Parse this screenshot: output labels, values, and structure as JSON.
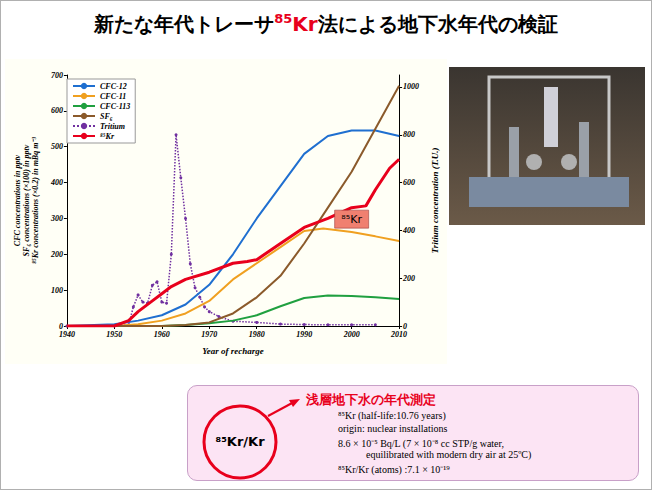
{
  "title": [
    {
      "text": "新たな年代トレーサ"
    },
    {
      "text": "85",
      "color": "#e8001c",
      "superscript": true
    },
    {
      "text": "Kr",
      "color": "#e8001c"
    },
    {
      "text": "法による地下水年代の検証"
    }
  ],
  "chart_data": {
    "type": "line",
    "x_label": "Year of recharge",
    "y_label": [
      "CFC concentrations in pptv",
      "SF₆ concentrations (×100) in pptv",
      "⁸⁵Kr concentrations (×0.2) in mBq m⁻³"
    ],
    "y2_label": "Tritium concentration (T.U.)",
    "xlim": [
      1940,
      2010
    ],
    "xticks": [
      1940,
      1950,
      1960,
      1970,
      1980,
      1990,
      2000,
      2010
    ],
    "ylim": [
      0,
      700
    ],
    "yticks": [
      0,
      100,
      200,
      300,
      400,
      500,
      600,
      700
    ],
    "y2lim": [
      0,
      1050
    ],
    "y2ticks": [
      0,
      200,
      400,
      600,
      800,
      1000
    ],
    "grid": false,
    "legend": "upper left",
    "series": [
      {
        "name": "CFC-12",
        "color": "#1f6fd0",
        "line_style": "solid",
        "marker": "none",
        "x": [
          1940,
          1950,
          1955,
          1960,
          1965,
          1970,
          1975,
          1980,
          1985,
          1990,
          1995,
          2000,
          2005,
          2010
        ],
        "values": [
          0,
          5,
          15,
          30,
          60,
          115,
          200,
          300,
          390,
          480,
          530,
          545,
          545,
          530
        ]
      },
      {
        "name": "CFC-11",
        "color": "#f0a020",
        "line_style": "solid",
        "marker": "none",
        "x": [
          1940,
          1950,
          1955,
          1960,
          1965,
          1970,
          1975,
          1980,
          1985,
          1990,
          1994,
          2000,
          2005,
          2010
        ],
        "values": [
          0,
          0,
          5,
          15,
          35,
          70,
          130,
          175,
          220,
          265,
          272,
          262,
          250,
          237
        ]
      },
      {
        "name": "CFC-113",
        "color": "#20a040",
        "line_style": "solid",
        "marker": "none",
        "x": [
          1940,
          1960,
          1965,
          1970,
          1975,
          1980,
          1985,
          1990,
          1995,
          2000,
          2005,
          2010
        ],
        "values": [
          0,
          0,
          3,
          8,
          15,
          30,
          55,
          78,
          85,
          84,
          80,
          75
        ]
      },
      {
        "name": "SF₆",
        "color": "#8b5a2b",
        "line_style": "solid",
        "marker": "none",
        "x": [
          1940,
          1960,
          1965,
          1970,
          1975,
          1980,
          1985,
          1990,
          1995,
          2000,
          2005,
          2010
        ],
        "values": [
          0,
          0,
          3,
          10,
          35,
          80,
          140,
          230,
          330,
          430,
          550,
          670
        ]
      },
      {
        "name": "Tritium",
        "color": "#7030a0",
        "line_style": "dotted",
        "marker": "circle",
        "axis": "y2",
        "x": [
          1940,
          1950,
          1953,
          1954,
          1955,
          1956,
          1957,
          1958,
          1959,
          1960,
          1961,
          1962,
          1963,
          1964,
          1965,
          1966,
          1967,
          1968,
          1969,
          1970,
          1972,
          1975,
          1980,
          1985,
          1990,
          1995,
          2000,
          2005
        ],
        "values": [
          0,
          0,
          5,
          80,
          130,
          100,
          95,
          170,
          185,
          100,
          95,
          300,
          800,
          620,
          450,
          260,
          160,
          120,
          80,
          60,
          40,
          20,
          15,
          8,
          6,
          5,
          5,
          5
        ]
      },
      {
        "name": "⁸⁵Kr",
        "color": "#e8001c",
        "line_style": "solid",
        "marker": "none",
        "x": [
          1940,
          1950,
          1953,
          1955,
          1958,
          1960,
          1962,
          1965,
          1970,
          1975,
          1978,
          1980,
          1985,
          1990,
          1995,
          2000,
          2003,
          2005,
          2008,
          2010
        ],
        "values": [
          0,
          0,
          15,
          40,
          70,
          90,
          110,
          130,
          150,
          175,
          180,
          185,
          230,
          275,
          300,
          330,
          335,
          380,
          440,
          465
        ]
      }
    ],
    "annotations": [
      {
        "text": "⁸⁵Kr",
        "x": 2000,
        "y": 298,
        "color": "#f08070"
      }
    ]
  },
  "text_box": {
    "circle_label": "⁸⁵Kr/Kr",
    "heading": "浅層地下水の年代測定",
    "lines": [
      "⁸⁵Kr (half-life:10.76 years)",
      "origin: nuclear installations",
      "8.6 × 10⁻⁵ Bq/L (7 × 10⁻⁸ cc STP/g water,",
      "equilibrated with modern dry air at 25ºC)",
      "⁸⁵Kr/Kr (atoms) :7.1 × 10⁻¹⁹"
    ]
  }
}
